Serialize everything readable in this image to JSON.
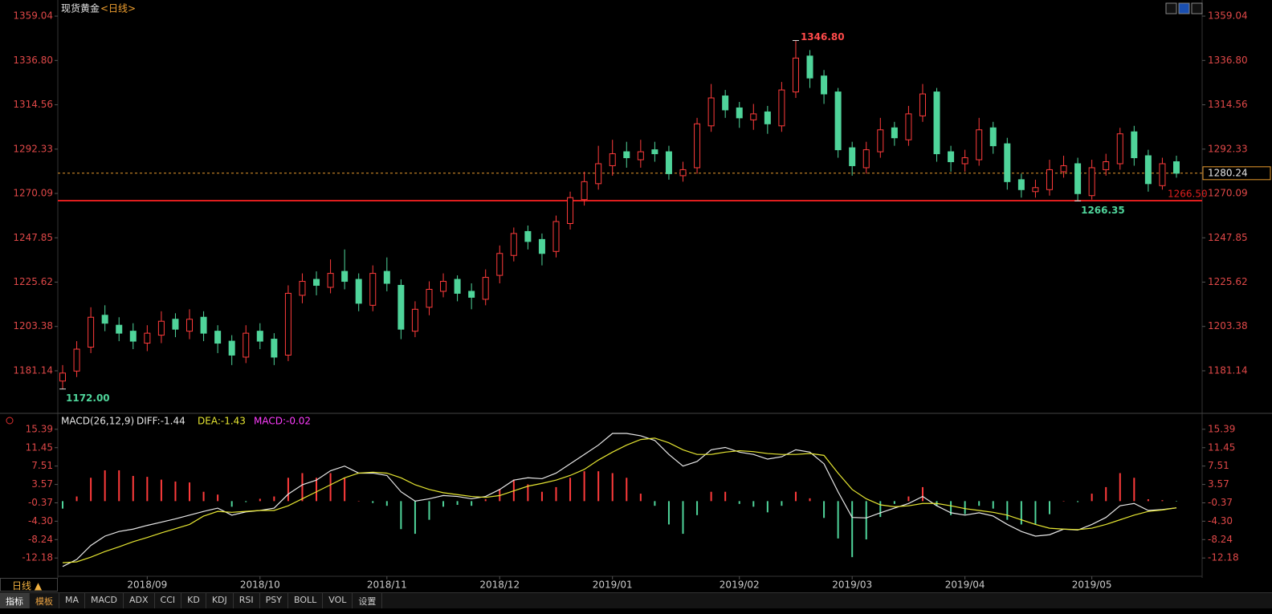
{
  "chart_data": [
    {
      "type": "candlestick",
      "title": "现货黄金",
      "subtitle": "<日线>",
      "categories": [
        null,
        null,
        null,
        null,
        null,
        null,
        "2018/09",
        null,
        null,
        null,
        null,
        null,
        null,
        null,
        "2018/10",
        null,
        null,
        null,
        null,
        null,
        null,
        null,
        null,
        "2018/11",
        null,
        null,
        null,
        null,
        null,
        null,
        null,
        "2018/12",
        null,
        null,
        null,
        null,
        null,
        null,
        null,
        "2019/01",
        null,
        null,
        null,
        null,
        null,
        null,
        null,
        null,
        "2019/02",
        null,
        null,
        null,
        null,
        null,
        null,
        null,
        "2019/03",
        null,
        null,
        null,
        null,
        null,
        null,
        null,
        "2019/04",
        null,
        null,
        null,
        null,
        null,
        null,
        null,
        null,
        "2019/05",
        null,
        null,
        null,
        null,
        null,
        null
      ],
      "open": [
        1176,
        1181,
        1193,
        1209,
        1204,
        1201,
        1195,
        1199,
        1207,
        1201,
        1208,
        1201,
        1196,
        1188,
        1201,
        1197,
        1189,
        1219,
        1227,
        1223,
        1231,
        1227,
        1214,
        1231,
        1224,
        1201,
        1213,
        1221,
        1227,
        1221,
        1217,
        1229,
        1239,
        1251,
        1247,
        1241,
        1255,
        1267,
        1275,
        1284,
        1291,
        1287,
        1292,
        1291,
        1279,
        1283,
        1304,
        1319,
        1313,
        1307,
        1311,
        1304,
        1321,
        1339,
        1329,
        1321,
        1293,
        1283,
        1291,
        1303,
        1297,
        1309,
        1321,
        1291,
        1285,
        1287,
        1303,
        1295,
        1277,
        1271,
        1272,
        1281,
        1285,
        1269,
        1282,
        1285,
        1301,
        1289,
        1274,
        1286
      ],
      "high": [
        1184,
        1196,
        1213,
        1214,
        1208,
        1205,
        1204,
        1211,
        1210,
        1212,
        1211,
        1204,
        1199,
        1204,
        1205,
        1200,
        1224,
        1230,
        1231,
        1237,
        1242,
        1230,
        1234,
        1238,
        1227,
        1216,
        1226,
        1230,
        1229,
        1225,
        1232,
        1244,
        1253,
        1254,
        1250,
        1259,
        1271,
        1281,
        1294,
        1297,
        1296,
        1297,
        1296,
        1294,
        1286,
        1308,
        1325,
        1322,
        1316,
        1315,
        1314,
        1326,
        1346.8,
        1342,
        1332,
        1323,
        1296,
        1296,
        1308,
        1306,
        1314,
        1325,
        1323,
        1294,
        1292,
        1308,
        1306,
        1298,
        1280,
        1277,
        1287,
        1289,
        1288,
        1287,
        1290,
        1303,
        1304,
        1292,
        1288,
        1289
      ],
      "low": [
        1172,
        1178,
        1190,
        1201,
        1196,
        1192,
        1191,
        1195,
        1198,
        1197,
        1196,
        1190,
        1184,
        1185,
        1192,
        1184,
        1186,
        1215,
        1219,
        1220,
        1222,
        1211,
        1211,
        1221,
        1197,
        1198,
        1209,
        1218,
        1216,
        1212,
        1214,
        1225,
        1236,
        1242,
        1234,
        1238,
        1252,
        1264,
        1272,
        1279,
        1283,
        1283,
        1286,
        1277,
        1276,
        1280,
        1301,
        1308,
        1303,
        1302,
        1300,
        1301,
        1318,
        1323,
        1315,
        1288,
        1279,
        1280,
        1288,
        1294,
        1294,
        1306,
        1286,
        1281,
        1281,
        1284,
        1290,
        1272,
        1268,
        1268,
        1269,
        1278,
        1266.35,
        1267,
        1279,
        1282,
        1284,
        1271,
        1272,
        1278
      ],
      "close": [
        1180,
        1192,
        1208,
        1205,
        1200,
        1196,
        1200,
        1206,
        1202,
        1207,
        1200,
        1195,
        1189,
        1200,
        1196,
        1188,
        1220,
        1226,
        1224,
        1230,
        1226,
        1215,
        1230,
        1225,
        1202,
        1212,
        1222,
        1226,
        1220,
        1218,
        1228,
        1240,
        1250,
        1246,
        1240,
        1256,
        1268,
        1276,
        1285,
        1290,
        1288,
        1291,
        1290,
        1280,
        1282,
        1305,
        1318,
        1312,
        1308,
        1310,
        1305,
        1322,
        1338,
        1328,
        1320,
        1292,
        1284,
        1292,
        1302,
        1298,
        1310,
        1320,
        1290,
        1286,
        1288,
        1302,
        1294,
        1276,
        1272,
        1273,
        1282,
        1284,
        1270,
        1283,
        1286,
        1300,
        1288,
        1275,
        1285,
        1280.24
      ],
      "up_color": "#ff3b3b",
      "down_color": "#4fd49a",
      "ylim": [
        1161,
        1363.9
      ],
      "yticks": [
        1359.04,
        {
          "value": 1336.8,
          "label": "1336.80"
        },
        1314.56,
        1292.33,
        1270.09,
        1247.85,
        1225.62,
        1203.38,
        1181.14
      ],
      "annotations": [
        {
          "value": 1346.8,
          "label": "1346.80"
        },
        {
          "value": 1172,
          "label": "1172.00"
        },
        {
          "value": 1266.35,
          "label": "1266.35"
        }
      ],
      "reference_lines": [
        {
          "value": 1280.24,
          "label": "1280.24",
          "color": "#e89a2c",
          "style": "dashed"
        },
        {
          "value": 1266.5,
          "label": "1266.50",
          "color": "#e01e1e",
          "style": "solid"
        }
      ]
    },
    {
      "type": "macd",
      "title": "MACD(26,12,9)",
      "series": [
        {
          "name": "DIFF:-1.44",
          "color": "#e8e8e8",
          "values": [
            -14,
            -12.5,
            -9.5,
            -7.5,
            -6.5,
            -6,
            -5.2,
            -4.5,
            -3.8,
            -3,
            -2.2,
            -1.5,
            -3,
            -2.3,
            -2,
            -1.5,
            1.5,
            3.5,
            4.5,
            6.5,
            7.5,
            6,
            6,
            5.5,
            2,
            0,
            0.5,
            1.2,
            1,
            0.5,
            1,
            2.5,
            4.5,
            5,
            4.8,
            6,
            8,
            10,
            12,
            14.5,
            14.5,
            14,
            13,
            10,
            7.5,
            8.5,
            11,
            11.5,
            10.5,
            10,
            9,
            9.5,
            11,
            10.5,
            8,
            2,
            -3.5,
            -3.6,
            -2.5,
            -1.5,
            -0.5,
            1,
            -1,
            -2.5,
            -3,
            -2.5,
            -3.2,
            -5,
            -6.5,
            -7.5,
            -7.2,
            -6,
            -6.2,
            -5,
            -3.5,
            -1,
            -0.5,
            -2,
            -1.8,
            -1.44
          ]
        },
        {
          "name": "DEA:-1.43",
          "color": "#e6e632",
          "values": [
            -13.2,
            -13,
            -12,
            -10.8,
            -9.8,
            -8.7,
            -7.8,
            -6.8,
            -5.9,
            -5,
            -3.2,
            -2.2,
            -2.4,
            -2.2,
            -2,
            -2,
            -1,
            0.5,
            2,
            3.5,
            5,
            6,
            6.2,
            6,
            5,
            3.5,
            2.5,
            1.8,
            1.4,
            1,
            0.8,
            1.2,
            2.2,
            3.2,
            3.8,
            4.5,
            5.5,
            6.8,
            8.8,
            10.5,
            12,
            13.2,
            13.5,
            12.5,
            11,
            10,
            10,
            10.5,
            10.8,
            10.6,
            10.2,
            10,
            10,
            10.2,
            9.8,
            6,
            2.5,
            0.5,
            -0.8,
            -1.2,
            -1,
            -0.5,
            -0.5,
            -1,
            -1.6,
            -2,
            -2.4,
            -3,
            -4,
            -5,
            -5.8,
            -6,
            -6.1,
            -5.8,
            -5,
            -4,
            -3,
            -2.2,
            -1.9,
            -1.43
          ]
        },
        {
          "name": "MACD:-0.02",
          "color": "#ff3cff",
          "up_color": "#ff3b3b",
          "down_color": "#4fd49a",
          "values": [
            -1.6,
            1,
            5,
            6.6,
            6.6,
            5.4,
            5.2,
            4.6,
            4.2,
            4,
            2,
            1.4,
            -1.2,
            -0.2,
            0.5,
            1,
            5,
            6,
            5,
            6,
            5,
            0,
            -0.4,
            -1,
            -6,
            -7,
            -4,
            -1.2,
            -0.8,
            -1,
            0.4,
            2.6,
            4.6,
            3.6,
            2,
            3,
            5,
            6.4,
            6.4,
            6,
            5,
            1.6,
            -1,
            -5,
            -7,
            -3,
            2,
            2,
            -0.6,
            -1.2,
            -2.4,
            -1,
            2,
            0.6,
            -3.6,
            -8,
            -12,
            -8.2,
            -3.4,
            -0.6,
            1,
            3,
            -1,
            -3,
            -2.8,
            -1,
            -1.6,
            -4,
            -5,
            -5,
            -2.8,
            0,
            -0.2,
            1.6,
            3,
            6,
            5,
            0.4,
            0.2,
            -0.02
          ]
        }
      ],
      "ylim": [
        -16.1,
        17.6
      ],
      "yticks": [
        15.39,
        11.45,
        7.51,
        3.57,
        -0.37,
        {
          "value": -4.3,
          "label": "-4.30"
        },
        -8.24,
        -12.18
      ]
    }
  ],
  "ui": {
    "period": "日线 ▲",
    "tabs": [
      "指标",
      "模板",
      "MA",
      "MACD",
      "ADX",
      "CCI",
      "KD",
      "KDJ",
      "RSI",
      "PSY",
      "BOLL",
      "VOL",
      "设置"
    ]
  }
}
